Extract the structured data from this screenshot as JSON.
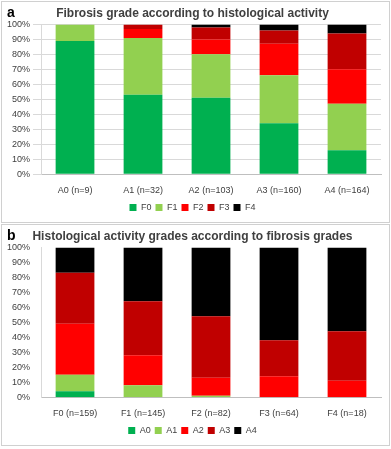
{
  "chart_data": [
    {
      "type": "bar",
      "stacked": true,
      "grid": true,
      "legend": "bottom",
      "annotations": [
        "a"
      ],
      "title": "Fibrosis grade according to histological activity",
      "categories": [
        "A0 (n=9)",
        "A1 (n=32)",
        "A2 (n=103)",
        "A3 (n=160)",
        "A4 (n=164)"
      ],
      "series": [
        {
          "name": "F0",
          "color": "#00b050",
          "values": [
            89,
            53,
            51,
            34,
            16
          ]
        },
        {
          "name": "F1",
          "color": "#92d050",
          "values": [
            11,
            38,
            29,
            32,
            31
          ]
        },
        {
          "name": "F2",
          "color": "#ff0000",
          "values": [
            0,
            6,
            10,
            21,
            23
          ]
        },
        {
          "name": "F3",
          "color": "#c00000",
          "values": [
            0,
            3,
            8,
            9,
            24
          ]
        },
        {
          "name": "F4",
          "color": "#000000",
          "values": [
            0,
            0,
            2,
            4,
            6
          ]
        }
      ],
      "ylim": [
        0,
        100
      ],
      "yticks": [
        {
          "value": 0,
          "label": "0%"
        },
        {
          "value": 10,
          "label": "10%"
        },
        {
          "value": 20,
          "label": "20%"
        },
        {
          "value": 30,
          "label": "30%"
        },
        {
          "value": 40,
          "label": "40%"
        },
        {
          "value": 50,
          "label": "50%"
        },
        {
          "value": 60,
          "label": "60%"
        },
        {
          "value": 70,
          "label": "70%"
        },
        {
          "value": 80,
          "label": "80%"
        },
        {
          "value": 90,
          "label": "90%"
        },
        {
          "value": 100,
          "label": "100%"
        }
      ]
    },
    {
      "type": "bar",
      "stacked": true,
      "grid": false,
      "legend": "bottom",
      "annotations": [
        "b"
      ],
      "title": "Histological activity grades according to fibrosis grades",
      "categories": [
        "F0 (n=159)",
        "F1 (n=145)",
        "F2 (n=82)",
        "F3 (n=64)",
        "F4 (n=18)"
      ],
      "series": [
        {
          "name": "A0",
          "color": "#00b050",
          "values": [
            4,
            0,
            0,
            0,
            0
          ]
        },
        {
          "name": "A1",
          "color": "#92d050",
          "values": [
            11,
            8,
            1,
            0,
            0
          ]
        },
        {
          "name": "A2",
          "color": "#ff0000",
          "values": [
            34,
            20,
            12,
            14,
            11
          ]
        },
        {
          "name": "A3",
          "color": "#c00000",
          "values": [
            34,
            36,
            41,
            24,
            33
          ]
        },
        {
          "name": "A4",
          "color": "#000000",
          "values": [
            17,
            36,
            46,
            62,
            56
          ]
        }
      ],
      "ylim": [
        0,
        100
      ],
      "yticks": [
        {
          "value": 0,
          "label": "0%"
        },
        {
          "value": 10,
          "label": "10%"
        },
        {
          "value": 20,
          "label": "20%"
        },
        {
          "value": 30,
          "label": "30%"
        },
        {
          "value": 40,
          "label": "40%"
        },
        {
          "value": 50,
          "label": "50%"
        },
        {
          "value": 60,
          "label": "60%"
        },
        {
          "value": 70,
          "label": "70%"
        },
        {
          "value": 80,
          "label": "80%"
        },
        {
          "value": 90,
          "label": "90%"
        },
        {
          "value": 100,
          "label": "100%"
        }
      ]
    }
  ]
}
